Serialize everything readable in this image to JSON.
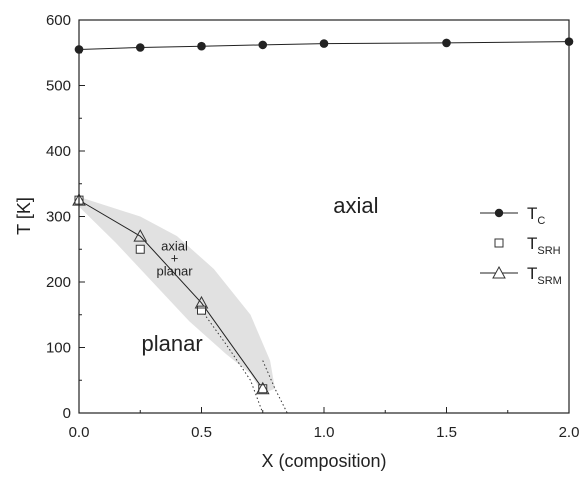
{
  "chart_data": {
    "type": "scatter",
    "xlabel": "X  (composition)",
    "ylabel": "T [K]",
    "xlim": [
      0.0,
      2.0
    ],
    "ylim": [
      0,
      600
    ],
    "xticks": [
      "0.0",
      "0.5",
      "1.0",
      "1.5",
      "2.0"
    ],
    "yticks": [
      "0",
      "100",
      "200",
      "300",
      "400",
      "500",
      "600"
    ],
    "grid": false,
    "legend_position": "right",
    "series": [
      {
        "name": "T",
        "sub": "C",
        "marker": "filled-circle",
        "line": true,
        "points": [
          [
            0.0,
            555
          ],
          [
            0.25,
            558
          ],
          [
            0.5,
            560
          ],
          [
            0.75,
            562
          ],
          [
            1.0,
            564
          ],
          [
            1.5,
            565
          ],
          [
            2.0,
            567
          ]
        ]
      },
      {
        "name": "T",
        "sub": "SRH",
        "marker": "open-square",
        "line": false,
        "points": [
          [
            0.0,
            325
          ],
          [
            0.25,
            250
          ],
          [
            0.5,
            157
          ],
          [
            0.75,
            37
          ]
        ]
      },
      {
        "name": "T",
        "sub": "SRM",
        "marker": "open-triangle",
        "line": true,
        "points": [
          [
            0.0,
            325
          ],
          [
            0.25,
            270
          ],
          [
            0.5,
            168
          ],
          [
            0.75,
            37
          ]
        ]
      }
    ],
    "band": [
      [
        0.0,
        330
      ],
      [
        0.25,
        300
      ],
      [
        0.4,
        270
      ],
      [
        0.55,
        220
      ],
      [
        0.7,
        150
      ],
      [
        0.78,
        80
      ],
      [
        0.8,
        37
      ],
      [
        0.75,
        30
      ],
      [
        0.7,
        60
      ],
      [
        0.6,
        90
      ],
      [
        0.45,
        140
      ],
      [
        0.3,
        200
      ],
      [
        0.15,
        260
      ],
      [
        0.0,
        315
      ]
    ],
    "dotted_lines": [
      [
        [
          0.5,
          157
        ],
        [
          0.6,
          105
        ],
        [
          0.7,
          50
        ],
        [
          0.75,
          0
        ]
      ],
      [
        [
          0.75,
          80
        ],
        [
          0.8,
          37
        ],
        [
          0.85,
          0
        ]
      ]
    ],
    "annotations": [
      {
        "text": "axial",
        "x": 1.13,
        "y": 305,
        "size": "large"
      },
      {
        "text": "planar",
        "x": 0.38,
        "y": 95,
        "size": "large"
      },
      {
        "text": "axial",
        "x": 0.39,
        "y": 248,
        "size": "small"
      },
      {
        "text": "+",
        "x": 0.39,
        "y": 230,
        "size": "small"
      },
      {
        "text": "planar",
        "x": 0.39,
        "y": 210,
        "size": "small"
      }
    ]
  }
}
